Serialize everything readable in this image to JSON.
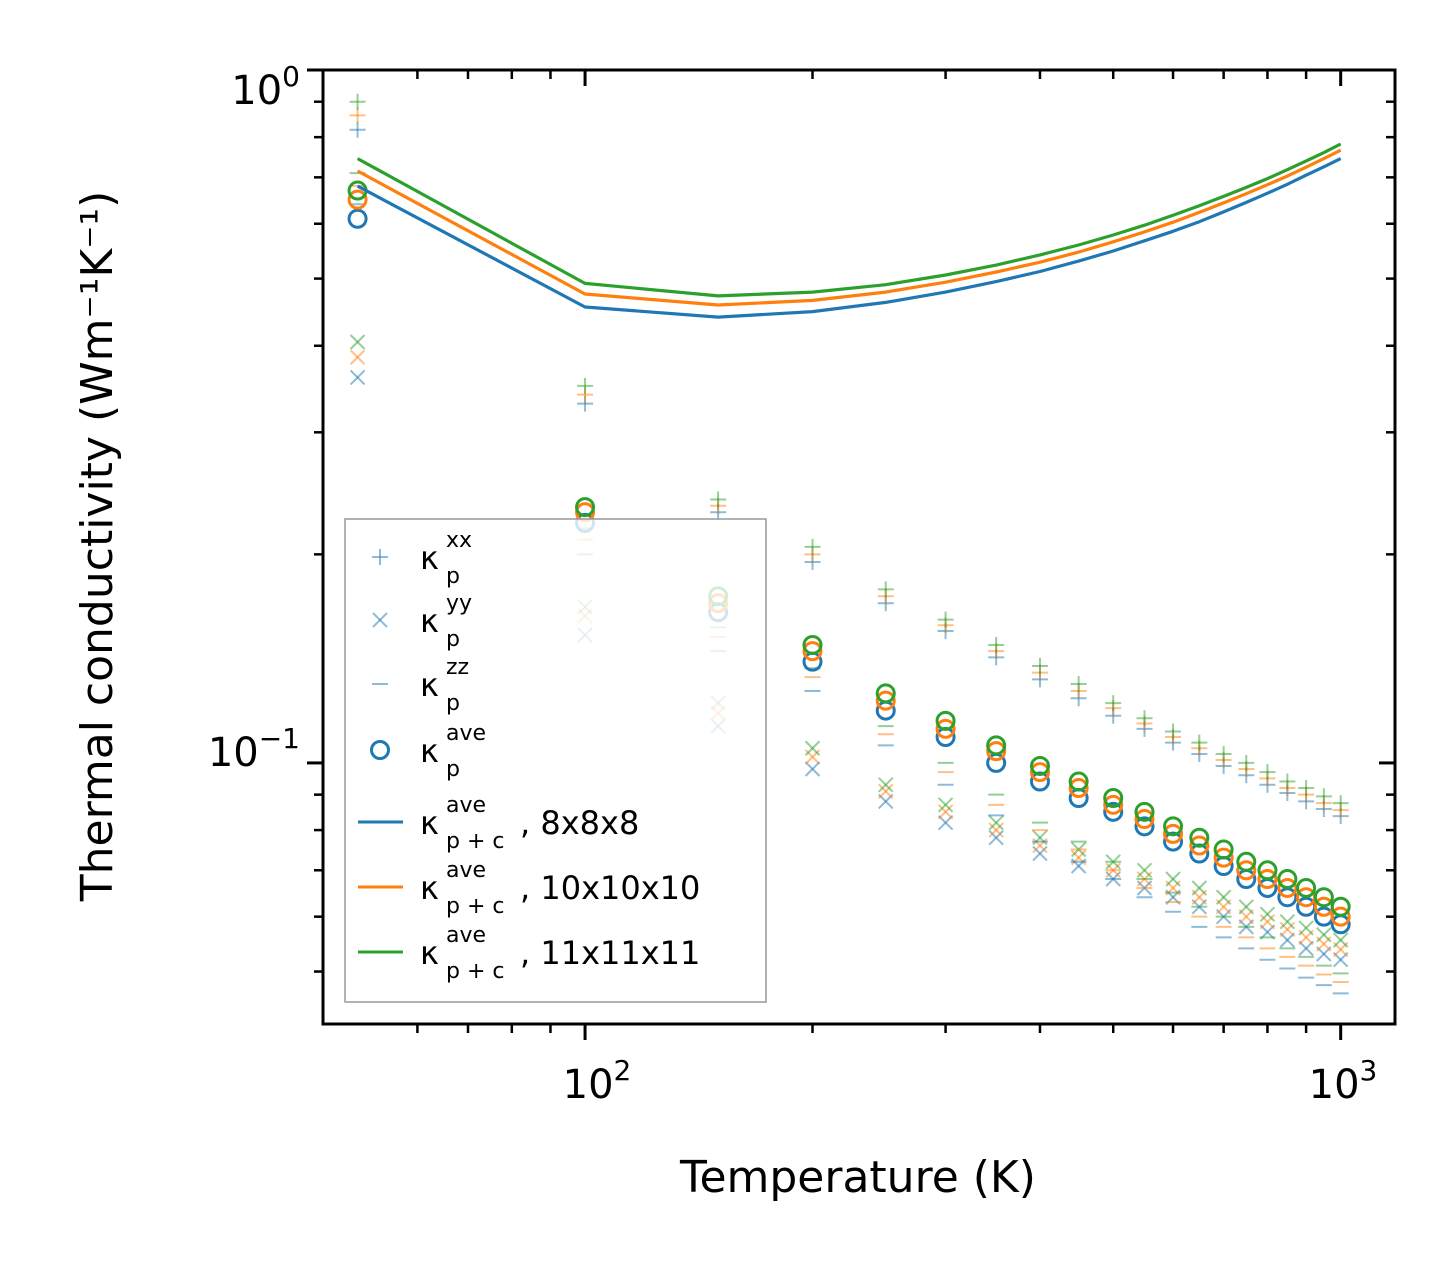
{
  "chart_data": {
    "type": "scatter",
    "title": "",
    "xlabel": "Temperature (K)",
    "ylabel": "Thermal conductivity (Wm⁻¹K⁻¹)",
    "xscale": "log",
    "yscale": "log",
    "xlim": [
      45,
      1180
    ],
    "ylim": [
      0.042,
      1.0
    ],
    "x_tick_labels": [
      {
        "value": 100,
        "base": "10",
        "exp": "2"
      },
      {
        "value": 1000,
        "base": "10",
        "exp": "3"
      }
    ],
    "y_tick_labels": [
      {
        "value": 1.0,
        "base": "10",
        "exp": "0"
      },
      {
        "value": 0.1,
        "base": "10",
        "exp": "−1"
      }
    ],
    "legend_position": "lower-left",
    "colors": {
      "blue": "#1f77b4",
      "orange": "#ff7f0e",
      "green": "#2ca02c"
    },
    "x": [
      50,
      100,
      150,
      200,
      250,
      300,
      350,
      400,
      450,
      500,
      550,
      600,
      650,
      700,
      750,
      800,
      850,
      900,
      950,
      1000
    ],
    "legend": [
      {
        "base": "κ",
        "sub": "p",
        "sup": "xx",
        "rest": "",
        "marker": "plus"
      },
      {
        "base": "κ",
        "sub": "p",
        "sup": "yy",
        "rest": "",
        "marker": "x"
      },
      {
        "base": "κ",
        "sub": "p",
        "sup": "zz",
        "rest": "",
        "marker": "hline"
      },
      {
        "base": "κ",
        "sub": "p",
        "sup": "ave",
        "rest": "",
        "marker": "circle"
      },
      {
        "base": "κ",
        "sub": "p + c",
        "sup": "ave",
        "rest": ", 8x8x8",
        "marker": "line",
        "color": "#1f77b4"
      },
      {
        "base": "κ",
        "sub": "p + c",
        "sup": "ave",
        "rest": ", 10x10x10",
        "marker": "line",
        "color": "#ff7f0e"
      },
      {
        "base": "κ",
        "sub": "p + c",
        "sup": "ave",
        "rest": ", 11x11x11",
        "marker": "line",
        "color": "#2ca02c"
      }
    ],
    "series": [
      {
        "name": "kp_xx 8x8x8",
        "marker": "plus",
        "color": "#1f77b4",
        "alpha": 0.5,
        "values": [
          0.82,
          0.33,
          0.23,
          0.195,
          0.17,
          0.155,
          0.142,
          0.132,
          0.124,
          0.117,
          0.112,
          0.107,
          0.103,
          0.099,
          0.096,
          0.093,
          0.0905,
          0.088,
          0.0858,
          0.0838
        ]
      },
      {
        "name": "kp_xx 10x10x10",
        "marker": "plus",
        "color": "#ff7f0e",
        "alpha": 0.5,
        "values": [
          0.86,
          0.34,
          0.235,
          0.2,
          0.174,
          0.158,
          0.145,
          0.135,
          0.127,
          0.12,
          0.114,
          0.109,
          0.105,
          0.101,
          0.098,
          0.095,
          0.092,
          0.09,
          0.0875,
          0.0855
        ]
      },
      {
        "name": "kp_xx 11x11x11",
        "marker": "plus",
        "color": "#2ca02c",
        "alpha": 0.5,
        "values": [
          0.9,
          0.35,
          0.24,
          0.205,
          0.178,
          0.161,
          0.148,
          0.138,
          0.13,
          0.122,
          0.116,
          0.111,
          0.107,
          0.103,
          0.1,
          0.097,
          0.094,
          0.092,
          0.0895,
          0.0875
        ]
      },
      {
        "name": "kp_yy 8x8x8",
        "marker": "x",
        "color": "#1f77b4",
        "alpha": 0.5,
        "values": [
          0.36,
          0.153,
          0.113,
          0.098,
          0.088,
          0.082,
          0.078,
          0.074,
          0.071,
          0.068,
          0.066,
          0.064,
          0.062,
          0.06,
          0.058,
          0.057,
          0.0555,
          0.054,
          0.053,
          0.052
        ]
      },
      {
        "name": "kp_yy 10x10x10",
        "marker": "x",
        "color": "#ff7f0e",
        "alpha": 0.5,
        "values": [
          0.385,
          0.163,
          0.118,
          0.102,
          0.091,
          0.085,
          0.08,
          0.076,
          0.073,
          0.07,
          0.068,
          0.066,
          0.064,
          0.062,
          0.06,
          0.059,
          0.0575,
          0.056,
          0.0548,
          0.0538
        ]
      },
      {
        "name": "kp_yy 11x11x11",
        "marker": "x",
        "color": "#2ca02c",
        "alpha": 0.5,
        "values": [
          0.405,
          0.168,
          0.122,
          0.105,
          0.093,
          0.087,
          0.082,
          0.078,
          0.075,
          0.072,
          0.07,
          0.068,
          0.066,
          0.064,
          0.062,
          0.0605,
          0.059,
          0.0578,
          0.0565,
          0.0555
        ]
      },
      {
        "name": "kp_zz 8x8x8",
        "marker": "hline",
        "color": "#1f77b4",
        "alpha": 0.5,
        "values": [
          0.64,
          0.2,
          0.145,
          0.127,
          0.106,
          0.093,
          0.084,
          0.077,
          0.072,
          0.068,
          0.064,
          0.061,
          0.058,
          0.056,
          0.054,
          0.052,
          0.0505,
          0.049,
          0.0478,
          0.0465
        ]
      },
      {
        "name": "kp_zz 10x10x10",
        "marker": "hline",
        "color": "#ff7f0e",
        "alpha": 0.5,
        "values": [
          0.68,
          0.21,
          0.152,
          0.133,
          0.11,
          0.097,
          0.087,
          0.08,
          0.075,
          0.07,
          0.066,
          0.063,
          0.06,
          0.058,
          0.056,
          0.054,
          0.0525,
          0.051,
          0.0495,
          0.0483
        ]
      },
      {
        "name": "kp_zz 11x11x11",
        "marker": "hline",
        "color": "#2ca02c",
        "alpha": 0.5,
        "values": [
          0.71,
          0.218,
          0.157,
          0.137,
          0.113,
          0.1,
          0.09,
          0.082,
          0.077,
          0.072,
          0.068,
          0.065,
          0.062,
          0.06,
          0.058,
          0.056,
          0.054,
          0.0525,
          0.051,
          0.0497
        ]
      },
      {
        "name": "kp_ave 8x8x8",
        "marker": "circle",
        "color": "#1f77b4",
        "alpha": 1.0,
        "values": [
          0.61,
          0.222,
          0.165,
          0.14,
          0.119,
          0.109,
          0.1,
          0.094,
          0.089,
          0.085,
          0.081,
          0.077,
          0.074,
          0.071,
          0.068,
          0.066,
          0.064,
          0.062,
          0.06,
          0.0585
        ]
      },
      {
        "name": "kp_ave 10x10x10",
        "marker": "circle",
        "color": "#ff7f0e",
        "alpha": 1.0,
        "values": [
          0.65,
          0.23,
          0.17,
          0.145,
          0.123,
          0.112,
          0.104,
          0.097,
          0.092,
          0.087,
          0.083,
          0.079,
          0.076,
          0.073,
          0.07,
          0.068,
          0.066,
          0.064,
          0.062,
          0.06
        ]
      },
      {
        "name": "kp_ave 11x11x11",
        "marker": "circle",
        "color": "#2ca02c",
        "alpha": 1.0,
        "values": [
          0.67,
          0.234,
          0.174,
          0.148,
          0.126,
          0.115,
          0.106,
          0.099,
          0.094,
          0.089,
          0.085,
          0.081,
          0.078,
          0.075,
          0.072,
          0.07,
          0.068,
          0.066,
          0.064,
          0.062
        ]
      },
      {
        "name": "kp+c_ave 8x8x8",
        "marker": "line",
        "color": "#1f77b4",
        "alpha": 1.0,
        "values": [
          0.68,
          0.455,
          0.44,
          0.448,
          0.462,
          0.478,
          0.495,
          0.512,
          0.53,
          0.548,
          0.567,
          0.585,
          0.604,
          0.624,
          0.644,
          0.664,
          0.684,
          0.705,
          0.725,
          0.745
        ]
      },
      {
        "name": "kp+c_ave 10x10x10",
        "marker": "line",
        "color": "#ff7f0e",
        "alpha": 1.0,
        "values": [
          0.715,
          0.475,
          0.458,
          0.465,
          0.478,
          0.494,
          0.511,
          0.528,
          0.546,
          0.565,
          0.584,
          0.603,
          0.623,
          0.643,
          0.663,
          0.683,
          0.703,
          0.724,
          0.745,
          0.766
        ]
      },
      {
        "name": "kp+c_ave 11x11x11",
        "marker": "line",
        "color": "#2ca02c",
        "alpha": 1.0,
        "values": [
          0.745,
          0.492,
          0.472,
          0.478,
          0.49,
          0.506,
          0.523,
          0.541,
          0.559,
          0.578,
          0.597,
          0.617,
          0.637,
          0.657,
          0.677,
          0.697,
          0.718,
          0.739,
          0.76,
          0.782
        ]
      }
    ]
  }
}
